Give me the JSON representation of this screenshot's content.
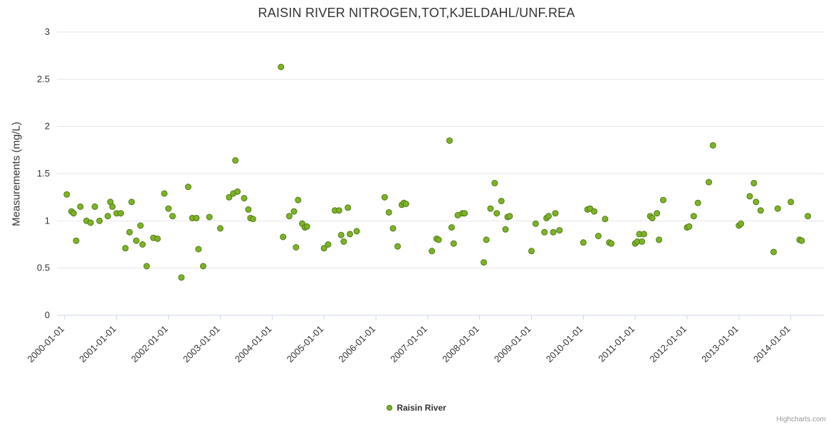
{
  "title": "RAISIN RIVER NITROGEN,TOT,KJELDAHL/UNF.REA",
  "credits": "Highcharts.com",
  "legend": {
    "label": "Raisin River"
  },
  "colors": {
    "point_fill": "#7db329",
    "point_stroke": "#527d12",
    "grid": "#e6e6e6",
    "axis_line": "#ccd6eb",
    "tick_label": "#333333",
    "title": "#333333",
    "credits": "#999999"
  },
  "chart_data": {
    "type": "scatter",
    "title": "RAISIN RIVER NITROGEN,TOT,KJELDAHL/UNF.REA",
    "xlabel": "",
    "ylabel": "Measurements (mg/L)",
    "ylim": [
      0,
      3
    ],
    "yticks": [
      0,
      0.5,
      1,
      1.5,
      2,
      2.5,
      3
    ],
    "ytick_labels": [
      "0",
      "0.5",
      "1",
      "1.5",
      "2",
      "2.5",
      "3"
    ],
    "xlim": [
      1999.85,
      2014.65
    ],
    "xticks": [
      2000,
      2001,
      2002,
      2003,
      2004,
      2005,
      2006,
      2007,
      2008,
      2009,
      2010,
      2011,
      2012,
      2013,
      2014
    ],
    "xtick_labels": [
      "2000-01-01",
      "2001-01-01",
      "2002-01-01",
      "2003-01-01",
      "2004-01-01",
      "2005-01-01",
      "2006-01-01",
      "2007-01-01",
      "2008-01-01",
      "2009-01-01",
      "2010-01-01",
      "2011-01-01",
      "2012-01-01",
      "2013-01-01",
      "2014-01-01"
    ],
    "grid": "horizontal",
    "legend_position": "bottom-center",
    "series": [
      {
        "name": "Raisin River",
        "points": [
          [
            2000.04,
            1.28
          ],
          [
            2000.13,
            1.1
          ],
          [
            2000.17,
            1.08
          ],
          [
            2000.22,
            0.79
          ],
          [
            2000.3,
            1.15
          ],
          [
            2000.42,
            1.0
          ],
          [
            2000.5,
            0.98
          ],
          [
            2000.58,
            1.15
          ],
          [
            2000.67,
            1.0
          ],
          [
            2000.83,
            1.05
          ],
          [
            2000.88,
            1.2
          ],
          [
            2000.92,
            1.15
          ],
          [
            2001.0,
            1.08
          ],
          [
            2001.08,
            1.08
          ],
          [
            2001.17,
            0.71
          ],
          [
            2001.25,
            0.88
          ],
          [
            2001.29,
            1.2
          ],
          [
            2001.38,
            0.79
          ],
          [
            2001.46,
            0.95
          ],
          [
            2001.5,
            0.75
          ],
          [
            2001.58,
            0.52
          ],
          [
            2001.71,
            0.82
          ],
          [
            2001.79,
            0.81
          ],
          [
            2001.92,
            1.29
          ],
          [
            2002.0,
            1.13
          ],
          [
            2002.08,
            1.05
          ],
          [
            2002.25,
            0.4
          ],
          [
            2002.38,
            1.36
          ],
          [
            2002.46,
            1.03
          ],
          [
            2002.54,
            1.03
          ],
          [
            2002.58,
            0.7
          ],
          [
            2002.67,
            0.52
          ],
          [
            2002.79,
            1.04
          ],
          [
            2003.0,
            0.92
          ],
          [
            2003.17,
            1.25
          ],
          [
            2003.25,
            1.29
          ],
          [
            2003.29,
            1.64
          ],
          [
            2003.33,
            1.31
          ],
          [
            2003.46,
            1.24
          ],
          [
            2003.54,
            1.12
          ],
          [
            2003.58,
            1.03
          ],
          [
            2003.63,
            1.02
          ],
          [
            2004.17,
            2.63
          ],
          [
            2004.21,
            0.83
          ],
          [
            2004.33,
            1.05
          ],
          [
            2004.42,
            1.1
          ],
          [
            2004.46,
            0.72
          ],
          [
            2004.5,
            1.22
          ],
          [
            2004.58,
            0.97
          ],
          [
            2004.63,
            0.93
          ],
          [
            2004.67,
            0.94
          ],
          [
            2005.0,
            0.71
          ],
          [
            2005.08,
            0.75
          ],
          [
            2005.21,
            1.11
          ],
          [
            2005.29,
            1.11
          ],
          [
            2005.33,
            0.85
          ],
          [
            2005.38,
            0.78
          ],
          [
            2005.46,
            1.14
          ],
          [
            2005.5,
            0.86
          ],
          [
            2005.63,
            0.89
          ],
          [
            2006.17,
            1.25
          ],
          [
            2006.25,
            1.09
          ],
          [
            2006.33,
            0.92
          ],
          [
            2006.42,
            0.73
          ],
          [
            2006.5,
            1.17
          ],
          [
            2006.54,
            1.19
          ],
          [
            2006.58,
            1.18
          ],
          [
            2007.08,
            0.68
          ],
          [
            2007.17,
            0.81
          ],
          [
            2007.21,
            0.8
          ],
          [
            2007.42,
            1.85
          ],
          [
            2007.46,
            0.93
          ],
          [
            2007.5,
            0.76
          ],
          [
            2007.58,
            1.06
          ],
          [
            2007.67,
            1.08
          ],
          [
            2007.71,
            1.08
          ],
          [
            2008.08,
            0.56
          ],
          [
            2008.13,
            0.8
          ],
          [
            2008.21,
            1.13
          ],
          [
            2008.29,
            1.4
          ],
          [
            2008.33,
            1.08
          ],
          [
            2008.42,
            1.21
          ],
          [
            2008.5,
            0.91
          ],
          [
            2008.54,
            1.04
          ],
          [
            2008.58,
            1.05
          ],
          [
            2009.0,
            0.68
          ],
          [
            2009.08,
            0.97
          ],
          [
            2009.25,
            0.88
          ],
          [
            2009.29,
            1.03
          ],
          [
            2009.33,
            1.05
          ],
          [
            2009.42,
            0.88
          ],
          [
            2009.46,
            1.08
          ],
          [
            2009.54,
            0.9
          ],
          [
            2010.0,
            0.77
          ],
          [
            2010.08,
            1.12
          ],
          [
            2010.13,
            1.13
          ],
          [
            2010.21,
            1.1
          ],
          [
            2010.29,
            0.84
          ],
          [
            2010.42,
            1.02
          ],
          [
            2010.5,
            0.77
          ],
          [
            2010.54,
            0.76
          ],
          [
            2011.0,
            0.76
          ],
          [
            2011.04,
            0.78
          ],
          [
            2011.08,
            0.86
          ],
          [
            2011.13,
            0.78
          ],
          [
            2011.17,
            0.86
          ],
          [
            2011.29,
            1.05
          ],
          [
            2011.33,
            1.03
          ],
          [
            2011.42,
            1.08
          ],
          [
            2011.46,
            0.8
          ],
          [
            2011.54,
            1.22
          ],
          [
            2012.0,
            0.93
          ],
          [
            2012.04,
            0.94
          ],
          [
            2012.13,
            1.05
          ],
          [
            2012.21,
            1.19
          ],
          [
            2012.42,
            1.41
          ],
          [
            2012.5,
            1.8
          ],
          [
            2013.0,
            0.95
          ],
          [
            2013.04,
            0.97
          ],
          [
            2013.21,
            1.26
          ],
          [
            2013.29,
            1.4
          ],
          [
            2013.33,
            1.2
          ],
          [
            2013.42,
            1.11
          ],
          [
            2013.67,
            0.67
          ],
          [
            2013.75,
            1.13
          ],
          [
            2014.0,
            1.2
          ],
          [
            2014.17,
            0.8
          ],
          [
            2014.21,
            0.79
          ],
          [
            2014.33,
            1.05
          ]
        ]
      }
    ]
  }
}
